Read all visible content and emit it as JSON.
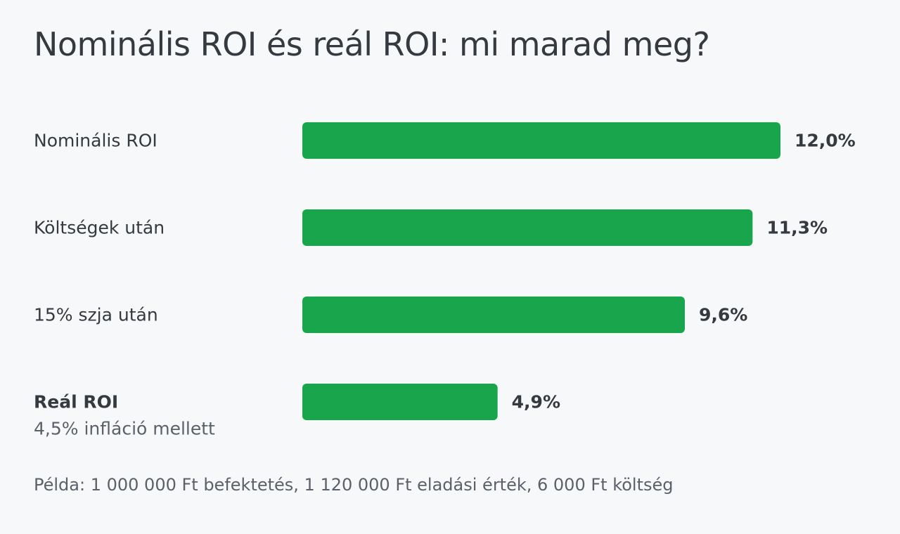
{
  "chart_data": {
    "type": "bar",
    "orientation": "horizontal",
    "title": "Nominális ROI és reál ROI: mi marad meg?",
    "categories": [
      "Nominális ROI",
      "Költségek után",
      "15% szja után",
      "Reál ROI"
    ],
    "category_sublabels": [
      "",
      "",
      "",
      "4,5% infláció mellett"
    ],
    "highlighted_category": "Reál ROI",
    "values": [
      12.0,
      11.3,
      9.6,
      4.9
    ],
    "value_labels": [
      "12,0%",
      "11,3%",
      "9,6%",
      "4,9%"
    ],
    "unit": "%",
    "xlim": [
      0,
      12
    ],
    "grid": false,
    "legend": "none",
    "bar_color": "#19a54b",
    "footnote": "Példa: 1 000 000 Ft befektetés, 1 120 000 Ft eladási érték, 6 000 Ft költség"
  }
}
